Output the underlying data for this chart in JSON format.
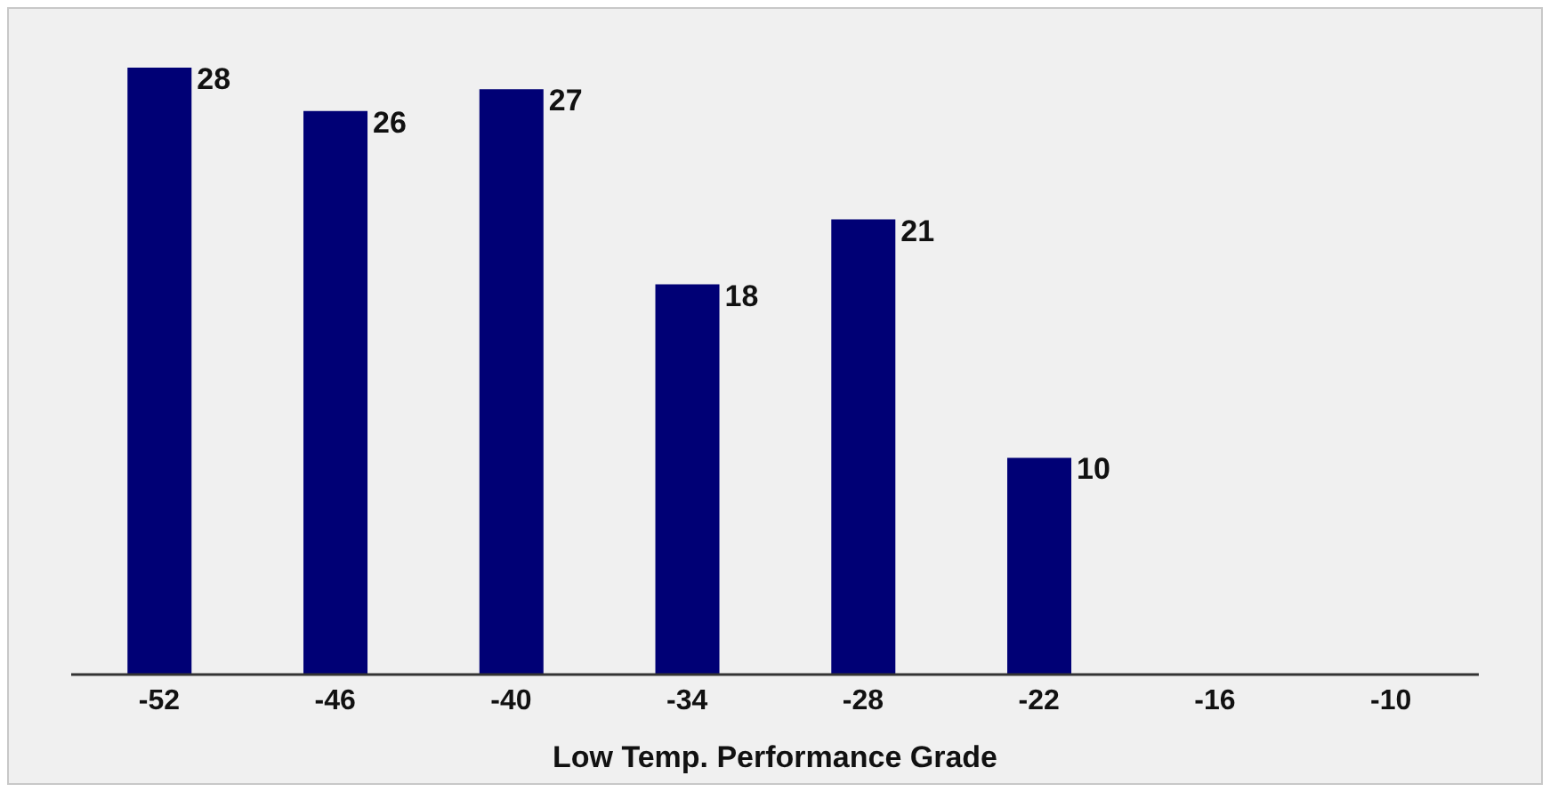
{
  "chart_data": {
    "type": "bar",
    "xlabel": "Low Temp. Performance Grade",
    "categories": [
      "-52",
      "-46",
      "-40",
      "-34",
      "-28",
      "-22",
      "-16",
      "-10"
    ],
    "values": [
      28,
      26,
      27,
      18,
      21,
      10,
      0,
      0
    ],
    "value_labels": [
      "28",
      "26",
      "27",
      "18",
      "21",
      "10",
      null,
      null
    ],
    "color": "#000075"
  }
}
